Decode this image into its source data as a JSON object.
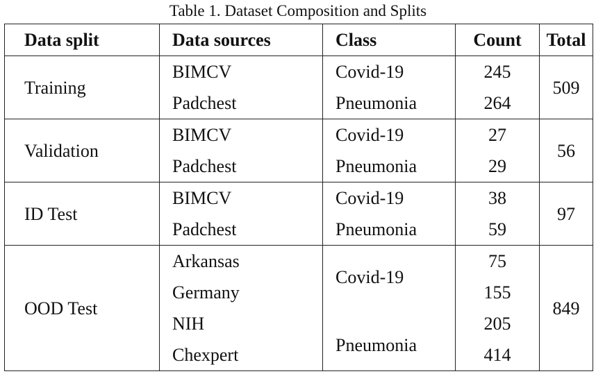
{
  "caption": "Table 1. Dataset Composition and Splits",
  "headers": [
    "Data split",
    "Data sources",
    "Class",
    "Count",
    "Total"
  ],
  "groups": [
    {
      "split": "Training",
      "total": "509",
      "rows": [
        {
          "source": "BIMCV",
          "class": "Covid-19",
          "count": "245"
        },
        {
          "source": "Padchest",
          "class": "Pneumonia",
          "count": "264"
        }
      ]
    },
    {
      "split": "Validation",
      "total": "56",
      "rows": [
        {
          "source": "BIMCV",
          "class": "Covid-19",
          "count": "27"
        },
        {
          "source": "Padchest",
          "class": "Pneumonia",
          "count": "29"
        }
      ]
    },
    {
      "split": "ID Test",
      "total": "97",
      "rows": [
        {
          "source": "BIMCV",
          "class": "Covid-19",
          "count": "38"
        },
        {
          "source": "Padchest",
          "class": "Pneumonia",
          "count": "59"
        }
      ]
    },
    {
      "split": "OOD Test",
      "total": "849",
      "classes": [
        "Covid-19",
        "Pneumonia"
      ],
      "rows": [
        {
          "source": "Arkansas",
          "count": "75"
        },
        {
          "source": "Germany",
          "count": "155"
        },
        {
          "source": "NIH",
          "count": "205"
        },
        {
          "source": "Chexpert",
          "count": "414"
        }
      ]
    }
  ]
}
